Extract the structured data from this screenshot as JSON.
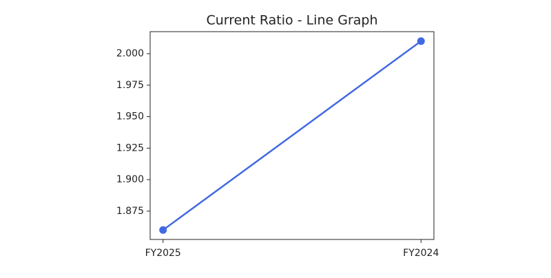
{
  "chart_data": {
    "type": "line",
    "title": "Current Ratio - Line Graph",
    "categories": [
      "FY2025",
      "FY2024"
    ],
    "series": [
      {
        "name": "Current Ratio",
        "color": "#4169e1",
        "values": [
          1.86,
          2.01
        ]
      }
    ],
    "ylim": [
      1.8525,
      2.0175
    ],
    "yticks": [
      {
        "value": 1.875,
        "label": "1.875"
      },
      {
        "value": 1.9,
        "label": "1.900"
      },
      {
        "value": 1.925,
        "label": "1.925"
      },
      {
        "value": 1.95,
        "label": "1.950"
      },
      {
        "value": 1.975,
        "label": "1.975"
      },
      {
        "value": 2.0,
        "label": "2.000"
      }
    ],
    "grid": false
  }
}
